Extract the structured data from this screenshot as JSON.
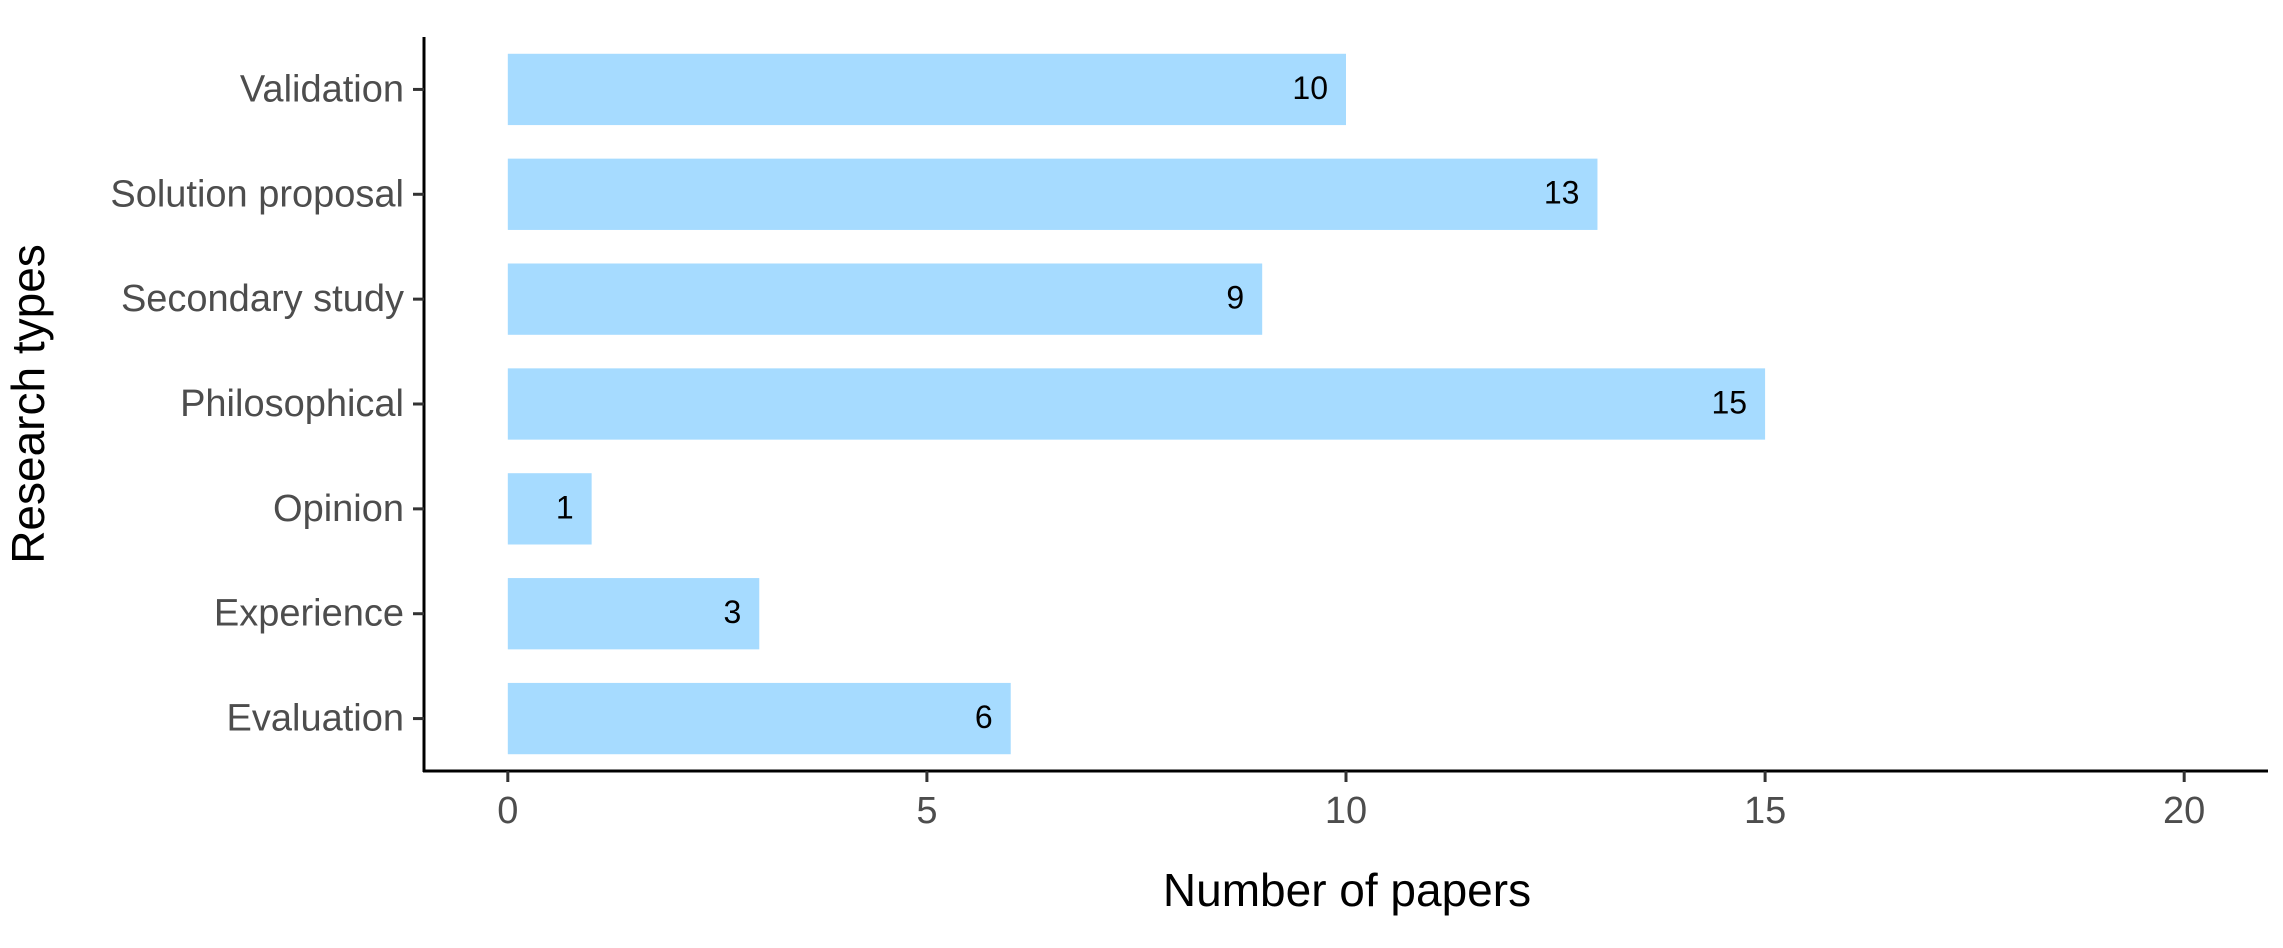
{
  "chart_data": {
    "type": "bar",
    "orientation": "horizontal",
    "x_label": "Number of papers",
    "y_label": "Research types",
    "categories": [
      "Validation",
      "Solution proposal",
      "Secondary study",
      "Philosophical",
      "Opinion",
      "Experience",
      "Evaluation"
    ],
    "values": [
      10,
      13,
      9,
      15,
      1,
      3,
      6
    ],
    "color": "#a6dbff",
    "xlim": [
      -1,
      21
    ],
    "xticks": [
      0,
      5,
      10,
      15,
      20
    ],
    "grid": false
  }
}
